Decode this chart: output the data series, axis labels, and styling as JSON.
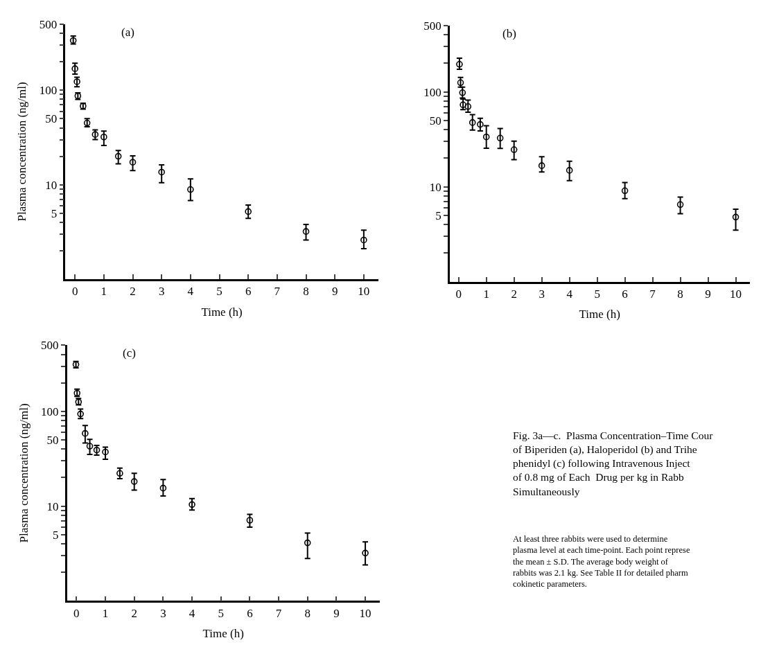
{
  "chart_data": [
    {
      "type": "scatter",
      "xlabel": "Time (h)",
      "ylabel": "Plasma concentration (ng/ml)",
      "annotations": [
        "(a)"
      ],
      "log": true,
      "marker": "circle",
      "xlim": [
        -0.33,
        10.5
      ],
      "ylim": [
        1,
        500
      ],
      "xticks": [
        0,
        1,
        2,
        3,
        4,
        5,
        6,
        7,
        8,
        9,
        10
      ],
      "yticks": [
        {
          "value": 2,
          "label": null
        },
        {
          "value": 3,
          "label": null
        },
        {
          "value": 4,
          "label": null
        },
        5,
        {
          "value": 6,
          "label": null
        },
        {
          "value": 7,
          "label": null
        },
        {
          "value": 8,
          "label": null
        },
        {
          "value": 9,
          "label": null
        },
        10,
        {
          "value": 20,
          "label": null
        },
        {
          "value": 30,
          "label": null
        },
        {
          "value": 40,
          "label": null
        },
        50,
        {
          "value": 60,
          "label": null
        },
        {
          "value": 70,
          "label": null
        },
        {
          "value": 80,
          "label": null
        },
        {
          "value": 90,
          "label": null
        },
        100,
        {
          "value": 200,
          "label": null
        },
        {
          "value": 300,
          "label": null
        },
        {
          "value": 400,
          "label": null
        },
        500
      ],
      "series": [
        {
          "color": "#000000",
          "x": [
            -0.06,
            0,
            0.07,
            0.1,
            0.28,
            0.42,
            0.7,
            1,
            1.5,
            2,
            3,
            4,
            6,
            8,
            10
          ],
          "values": [
            336,
            169,
            123,
            87,
            68,
            45,
            34,
            32,
            20,
            17.3,
            13.6,
            8.9,
            5.2,
            3.2,
            2.6
          ],
          "errors": [
            [
              308,
              374
            ],
            [
              148,
              193
            ],
            [
              109,
              137
            ],
            [
              80,
              94
            ],
            [
              63,
              73
            ],
            [
              41,
              50
            ],
            [
              30,
              38
            ],
            [
              26,
              37
            ],
            [
              16.6,
              23
            ],
            [
              14.1,
              20.2
            ],
            [
              10.5,
              16.2
            ],
            [
              6.8,
              11.5
            ],
            [
              4.4,
              6.1
            ],
            [
              2.6,
              3.8
            ],
            [
              2.1,
              3.3
            ]
          ]
        }
      ]
    },
    {
      "type": "scatter",
      "xlabel": "Time (h)",
      "annotations": [
        "(b)"
      ],
      "log": true,
      "marker": "circle",
      "xlim": [
        -0.32,
        10.5
      ],
      "ylim": [
        1,
        500
      ],
      "xticks": [
        0,
        1,
        2,
        3,
        4,
        5,
        6,
        7,
        8,
        9,
        10
      ],
      "yticks": [
        {
          "value": 2,
          "label": null
        },
        {
          "value": 3,
          "label": null
        },
        {
          "value": 4,
          "label": null
        },
        5,
        {
          "value": 6,
          "label": null
        },
        {
          "value": 7,
          "label": null
        },
        {
          "value": 8,
          "label": null
        },
        {
          "value": 9,
          "label": null
        },
        10,
        {
          "value": 20,
          "label": null
        },
        {
          "value": 30,
          "label": null
        },
        {
          "value": 40,
          "label": null
        },
        50,
        {
          "value": 60,
          "label": null
        },
        {
          "value": 70,
          "label": null
        },
        {
          "value": 80,
          "label": null
        },
        {
          "value": 90,
          "label": null
        },
        100,
        {
          "value": 200,
          "label": null
        },
        {
          "value": 300,
          "label": null
        },
        {
          "value": 400,
          "label": null
        },
        500
      ],
      "series": [
        {
          "color": "#000000",
          "x": [
            0.03,
            0.07,
            0.14,
            0.16,
            0.34,
            0.5,
            0.78,
            1,
            1.5,
            2,
            3,
            4,
            6,
            8,
            10
          ],
          "values": [
            195,
            125,
            98,
            73,
            70,
            47.5,
            45.4,
            33.5,
            32.6,
            24.6,
            16.7,
            14.9,
            9.1,
            6.5,
            4.8
          ],
          "errors": [
            [
              173,
              226
            ],
            [
              112,
              142
            ],
            [
              86,
              112
            ],
            [
              65,
              84
            ],
            [
              61,
              82
            ],
            [
              39.5,
              57.5
            ],
            [
              38.7,
              52.7
            ],
            [
              25.5,
              44
            ],
            [
              25.4,
              41.1
            ],
            [
              19.3,
              30.3
            ],
            [
              14.3,
              20.7
            ],
            [
              11.6,
              18.6
            ],
            [
              7.5,
              11.1
            ],
            [
              5.2,
              7.8
            ],
            [
              3.5,
              5.8
            ]
          ]
        }
      ]
    },
    {
      "type": "scatter",
      "xlabel": "Time (h)",
      "ylabel": "Plasma concentration (ng/ml)",
      "annotations": [
        "(c)"
      ],
      "log": true,
      "marker": "circle",
      "xlim": [
        -0.33,
        10.5
      ],
      "ylim": [
        1,
        500
      ],
      "xticks": [
        0,
        1,
        2,
        3,
        4,
        5,
        6,
        7,
        8,
        9,
        10
      ],
      "yticks": [
        {
          "value": 2,
          "label": null
        },
        {
          "value": 3,
          "label": null
        },
        {
          "value": 4,
          "label": null
        },
        5,
        {
          "value": 6,
          "label": null
        },
        {
          "value": 7,
          "label": null
        },
        {
          "value": 8,
          "label": null
        },
        {
          "value": 9,
          "label": null
        },
        10,
        {
          "value": 20,
          "label": null
        },
        {
          "value": 30,
          "label": null
        },
        {
          "value": 40,
          "label": null
        },
        50,
        {
          "value": 60,
          "label": null
        },
        {
          "value": 70,
          "label": null
        },
        {
          "value": 80,
          "label": null
        },
        {
          "value": 90,
          "label": null
        },
        100,
        {
          "value": 200,
          "label": null
        },
        {
          "value": 300,
          "label": null
        },
        {
          "value": 400,
          "label": null
        },
        500
      ],
      "series": [
        {
          "color": "#000000",
          "x": [
            -0.02,
            0.02,
            0.07,
            0.14,
            0.3,
            0.46,
            0.7,
            1,
            1.5,
            2,
            3,
            4,
            6,
            8,
            10
          ],
          "values": [
            313,
            156,
            126,
            94,
            58.6,
            43,
            39.1,
            37.3,
            22.2,
            18.2,
            15.5,
            10.4,
            7.1,
            4.1,
            3.2
          ],
          "errors": [
            [
              288,
              337
            ],
            [
              144,
              172
            ],
            [
              117,
              137
            ],
            [
              84,
              106
            ],
            [
              46.4,
              71
            ],
            [
              35.2,
              50.6
            ],
            [
              34.5,
              43.7
            ],
            [
              31.3,
              41.9
            ],
            [
              19.5,
              25.2
            ],
            [
              14.8,
              22.2
            ],
            [
              12.8,
              19.1
            ],
            [
              9.1,
              12
            ],
            [
              6,
              8.2
            ],
            [
              2.8,
              5.2
            ],
            [
              2.4,
              4.2
            ]
          ]
        }
      ]
    },
    {
      "type": "other",
      "title": "Fig. 3a—c.  Plasma Concentration–Time Cour\nof Biperiden (a), Haloperidol (b) and Trihe\nphenidyl (c) following Intravenous Inject\nof 0.8 mg of Each  Drug per kg in Rabb\nSimultaneously",
      "annotations": [
        "At least three rabbits were used to determine\nplasma level at each time-point. Each point represe\nthe mean ± S.D. The average body weight of\nrabbits was 2.1 kg. See Table II for detailed pharm\ncokinetic parameters."
      ]
    }
  ]
}
